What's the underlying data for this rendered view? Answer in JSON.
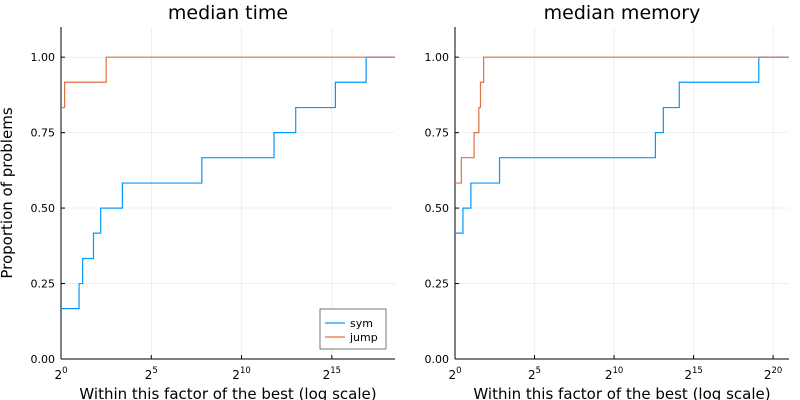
{
  "chart_data": [
    {
      "type": "line",
      "title": "median time",
      "ylabel": "Proportion of problems",
      "xlabel": "Within this factor of the best (log scale)",
      "xscale": "log2",
      "xlim_exponent": [
        0,
        18.5
      ],
      "ylim": [
        0,
        1.1
      ],
      "yticks": [
        0,
        0.25,
        0.5,
        0.75,
        1.0
      ],
      "ytick_labels": [
        "0.00",
        "0.25",
        "0.50",
        "0.75",
        "1.00"
      ],
      "xtick_exponents": [
        0,
        5,
        10,
        15
      ],
      "xtick_base": "2",
      "xtick_exps": [
        "0",
        "5",
        "10",
        "15"
      ],
      "grid": true,
      "legend": {
        "placement": "bottom-right"
      },
      "series": [
        {
          "name": "sym",
          "color": "#009AFA",
          "steps_exponent": [
            [
              0,
              0.167
            ],
            [
              1.0,
              0.25
            ],
            [
              1.2,
              0.333
            ],
            [
              1.8,
              0.417
            ],
            [
              2.2,
              0.5
            ],
            [
              3.4,
              0.583
            ],
            [
              7.8,
              0.667
            ],
            [
              11.8,
              0.75
            ],
            [
              13.0,
              0.833
            ],
            [
              15.2,
              0.917
            ],
            [
              16.9,
              1.0
            ],
            [
              18.5,
              1.0
            ]
          ]
        },
        {
          "name": "jump",
          "color": "#E26F46",
          "steps_exponent": [
            [
              0,
              0.833
            ],
            [
              0.2,
              0.917
            ],
            [
              2.5,
              1.0
            ],
            [
              18.5,
              1.0
            ]
          ]
        }
      ]
    },
    {
      "type": "line",
      "title": "median memory",
      "xlabel": "Within this factor of the best (log scale)",
      "xscale": "log2",
      "xlim_exponent": [
        0,
        21
      ],
      "ylim": [
        0,
        1.1
      ],
      "yticks": [
        0,
        0.25,
        0.5,
        0.75,
        1.0
      ],
      "ytick_labels": [
        "0.00",
        "0.25",
        "0.50",
        "0.75",
        "1.00"
      ],
      "xtick_exponents": [
        0,
        5,
        10,
        15,
        20
      ],
      "xtick_base": "2",
      "xtick_exps": [
        "0",
        "5",
        "10",
        "15",
        "20"
      ],
      "grid": true,
      "series": [
        {
          "name": "sym",
          "color": "#009AFA",
          "steps_exponent": [
            [
              0,
              0.417
            ],
            [
              0.5,
              0.5
            ],
            [
              1.0,
              0.583
            ],
            [
              2.8,
              0.667
            ],
            [
              12.6,
              0.75
            ],
            [
              13.1,
              0.833
            ],
            [
              14.1,
              0.917
            ],
            [
              19.1,
              1.0
            ],
            [
              21,
              1.0
            ]
          ]
        },
        {
          "name": "jump",
          "color": "#E26F46",
          "steps_exponent": [
            [
              0,
              0.583
            ],
            [
              0.4,
              0.667
            ],
            [
              1.2,
              0.75
            ],
            [
              1.5,
              0.833
            ],
            [
              1.6,
              0.917
            ],
            [
              1.8,
              1.0
            ],
            [
              21,
              1.0
            ]
          ]
        }
      ]
    }
  ]
}
